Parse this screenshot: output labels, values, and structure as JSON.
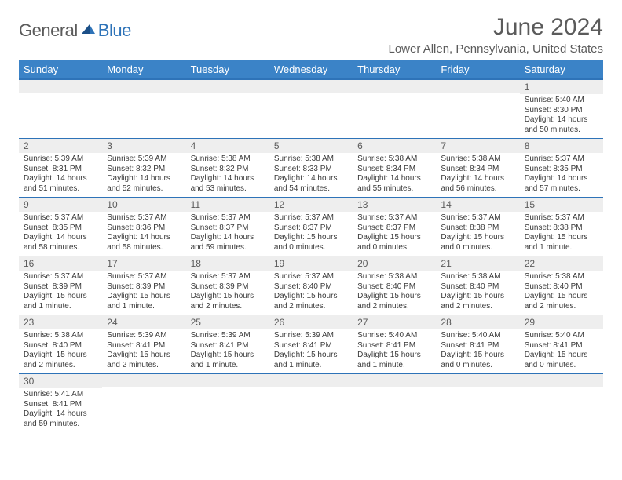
{
  "brand": {
    "part1": "General",
    "part2": "Blue"
  },
  "title": "June 2024",
  "location": "Lower Allen, Pennsylvania, United States",
  "colors": {
    "header_bg": "#3b83c7",
    "header_border": "#2e73b8",
    "text_gray": "#5b5b5b",
    "daynum_bg": "#eeeeee"
  },
  "day_headers": [
    "Sunday",
    "Monday",
    "Tuesday",
    "Wednesday",
    "Thursday",
    "Friday",
    "Saturday"
  ],
  "weeks": [
    [
      {
        "n": "",
        "lines": []
      },
      {
        "n": "",
        "lines": []
      },
      {
        "n": "",
        "lines": []
      },
      {
        "n": "",
        "lines": []
      },
      {
        "n": "",
        "lines": []
      },
      {
        "n": "",
        "lines": []
      },
      {
        "n": "1",
        "lines": [
          "Sunrise: 5:40 AM",
          "Sunset: 8:30 PM",
          "Daylight: 14 hours and 50 minutes."
        ]
      }
    ],
    [
      {
        "n": "2",
        "lines": [
          "Sunrise: 5:39 AM",
          "Sunset: 8:31 PM",
          "Daylight: 14 hours and 51 minutes."
        ]
      },
      {
        "n": "3",
        "lines": [
          "Sunrise: 5:39 AM",
          "Sunset: 8:32 PM",
          "Daylight: 14 hours and 52 minutes."
        ]
      },
      {
        "n": "4",
        "lines": [
          "Sunrise: 5:38 AM",
          "Sunset: 8:32 PM",
          "Daylight: 14 hours and 53 minutes."
        ]
      },
      {
        "n": "5",
        "lines": [
          "Sunrise: 5:38 AM",
          "Sunset: 8:33 PM",
          "Daylight: 14 hours and 54 minutes."
        ]
      },
      {
        "n": "6",
        "lines": [
          "Sunrise: 5:38 AM",
          "Sunset: 8:34 PM",
          "Daylight: 14 hours and 55 minutes."
        ]
      },
      {
        "n": "7",
        "lines": [
          "Sunrise: 5:38 AM",
          "Sunset: 8:34 PM",
          "Daylight: 14 hours and 56 minutes."
        ]
      },
      {
        "n": "8",
        "lines": [
          "Sunrise: 5:37 AM",
          "Sunset: 8:35 PM",
          "Daylight: 14 hours and 57 minutes."
        ]
      }
    ],
    [
      {
        "n": "9",
        "lines": [
          "Sunrise: 5:37 AM",
          "Sunset: 8:35 PM",
          "Daylight: 14 hours and 58 minutes."
        ]
      },
      {
        "n": "10",
        "lines": [
          "Sunrise: 5:37 AM",
          "Sunset: 8:36 PM",
          "Daylight: 14 hours and 58 minutes."
        ]
      },
      {
        "n": "11",
        "lines": [
          "Sunrise: 5:37 AM",
          "Sunset: 8:37 PM",
          "Daylight: 14 hours and 59 minutes."
        ]
      },
      {
        "n": "12",
        "lines": [
          "Sunrise: 5:37 AM",
          "Sunset: 8:37 PM",
          "Daylight: 15 hours and 0 minutes."
        ]
      },
      {
        "n": "13",
        "lines": [
          "Sunrise: 5:37 AM",
          "Sunset: 8:37 PM",
          "Daylight: 15 hours and 0 minutes."
        ]
      },
      {
        "n": "14",
        "lines": [
          "Sunrise: 5:37 AM",
          "Sunset: 8:38 PM",
          "Daylight: 15 hours and 0 minutes."
        ]
      },
      {
        "n": "15",
        "lines": [
          "Sunrise: 5:37 AM",
          "Sunset: 8:38 PM",
          "Daylight: 15 hours and 1 minute."
        ]
      }
    ],
    [
      {
        "n": "16",
        "lines": [
          "Sunrise: 5:37 AM",
          "Sunset: 8:39 PM",
          "Daylight: 15 hours and 1 minute."
        ]
      },
      {
        "n": "17",
        "lines": [
          "Sunrise: 5:37 AM",
          "Sunset: 8:39 PM",
          "Daylight: 15 hours and 1 minute."
        ]
      },
      {
        "n": "18",
        "lines": [
          "Sunrise: 5:37 AM",
          "Sunset: 8:39 PM",
          "Daylight: 15 hours and 2 minutes."
        ]
      },
      {
        "n": "19",
        "lines": [
          "Sunrise: 5:37 AM",
          "Sunset: 8:40 PM",
          "Daylight: 15 hours and 2 minutes."
        ]
      },
      {
        "n": "20",
        "lines": [
          "Sunrise: 5:38 AM",
          "Sunset: 8:40 PM",
          "Daylight: 15 hours and 2 minutes."
        ]
      },
      {
        "n": "21",
        "lines": [
          "Sunrise: 5:38 AM",
          "Sunset: 8:40 PM",
          "Daylight: 15 hours and 2 minutes."
        ]
      },
      {
        "n": "22",
        "lines": [
          "Sunrise: 5:38 AM",
          "Sunset: 8:40 PM",
          "Daylight: 15 hours and 2 minutes."
        ]
      }
    ],
    [
      {
        "n": "23",
        "lines": [
          "Sunrise: 5:38 AM",
          "Sunset: 8:40 PM",
          "Daylight: 15 hours and 2 minutes."
        ]
      },
      {
        "n": "24",
        "lines": [
          "Sunrise: 5:39 AM",
          "Sunset: 8:41 PM",
          "Daylight: 15 hours and 2 minutes."
        ]
      },
      {
        "n": "25",
        "lines": [
          "Sunrise: 5:39 AM",
          "Sunset: 8:41 PM",
          "Daylight: 15 hours and 1 minute."
        ]
      },
      {
        "n": "26",
        "lines": [
          "Sunrise: 5:39 AM",
          "Sunset: 8:41 PM",
          "Daylight: 15 hours and 1 minute."
        ]
      },
      {
        "n": "27",
        "lines": [
          "Sunrise: 5:40 AM",
          "Sunset: 8:41 PM",
          "Daylight: 15 hours and 1 minute."
        ]
      },
      {
        "n": "28",
        "lines": [
          "Sunrise: 5:40 AM",
          "Sunset: 8:41 PM",
          "Daylight: 15 hours and 0 minutes."
        ]
      },
      {
        "n": "29",
        "lines": [
          "Sunrise: 5:40 AM",
          "Sunset: 8:41 PM",
          "Daylight: 15 hours and 0 minutes."
        ]
      }
    ],
    [
      {
        "n": "30",
        "lines": [
          "Sunrise: 5:41 AM",
          "Sunset: 8:41 PM",
          "Daylight: 14 hours and 59 minutes."
        ]
      },
      {
        "n": "",
        "lines": []
      },
      {
        "n": "",
        "lines": []
      },
      {
        "n": "",
        "lines": []
      },
      {
        "n": "",
        "lines": []
      },
      {
        "n": "",
        "lines": []
      },
      {
        "n": "",
        "lines": []
      }
    ]
  ]
}
